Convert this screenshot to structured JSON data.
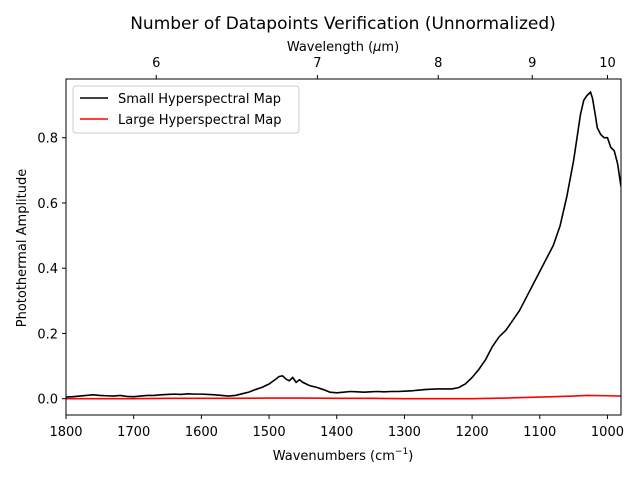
{
  "chart_data": {
    "type": "line",
    "title": "Number of Datapoints Verification (Unnormalized)",
    "xlabel": "Wavenumbers (cm",
    "xlabel_sup": "−1",
    "xlabel_close": ")",
    "ylabel": "Photothermal Amplitude",
    "top_xlabel": "Wavelength (",
    "top_xlabel_mu": "μ",
    "top_xlabel_unit": "m)",
    "xlim": [
      1800,
      980
    ],
    "ylim": [
      -0.05,
      0.98
    ],
    "x_ticks": [
      1800,
      1700,
      1600,
      1500,
      1400,
      1300,
      1200,
      1100,
      1000
    ],
    "y_ticks": [
      0.0,
      0.2,
      0.4,
      0.6,
      0.8
    ],
    "y_tick_labels": [
      "0.0",
      "0.2",
      "0.4",
      "0.6",
      "0.8"
    ],
    "top_ticks": [
      6,
      7,
      8,
      9,
      10
    ],
    "legend_position": "top-left",
    "grid": false,
    "series": [
      {
        "name": "Small Hyperspectral Map",
        "color": "#000000",
        "x": [
          1800,
          1790,
          1780,
          1770,
          1760,
          1750,
          1740,
          1730,
          1720,
          1710,
          1700,
          1690,
          1680,
          1670,
          1660,
          1650,
          1640,
          1630,
          1620,
          1610,
          1600,
          1590,
          1580,
          1570,
          1560,
          1550,
          1540,
          1530,
          1520,
          1510,
          1500,
          1490,
          1485,
          1480,
          1475,
          1470,
          1465,
          1460,
          1455,
          1450,
          1445,
          1440,
          1430,
          1420,
          1410,
          1400,
          1390,
          1380,
          1370,
          1360,
          1350,
          1340,
          1330,
          1320,
          1310,
          1300,
          1290,
          1280,
          1270,
          1260,
          1250,
          1240,
          1230,
          1220,
          1210,
          1200,
          1190,
          1180,
          1170,
          1160,
          1150,
          1140,
          1130,
          1120,
          1110,
          1100,
          1090,
          1080,
          1070,
          1060,
          1050,
          1045,
          1040,
          1035,
          1030,
          1025,
          1022,
          1018,
          1015,
          1010,
          1005,
          1000,
          995,
          990,
          985,
          980
        ],
        "y": [
          0.005,
          0.006,
          0.008,
          0.01,
          0.012,
          0.01,
          0.009,
          0.008,
          0.01,
          0.007,
          0.006,
          0.008,
          0.01,
          0.01,
          0.012,
          0.013,
          0.014,
          0.013,
          0.015,
          0.014,
          0.014,
          0.013,
          0.012,
          0.01,
          0.008,
          0.01,
          0.015,
          0.02,
          0.028,
          0.035,
          0.045,
          0.06,
          0.068,
          0.07,
          0.06,
          0.055,
          0.065,
          0.05,
          0.058,
          0.05,
          0.045,
          0.04,
          0.035,
          0.028,
          0.02,
          0.018,
          0.02,
          0.022,
          0.021,
          0.02,
          0.021,
          0.022,
          0.021,
          0.022,
          0.022,
          0.023,
          0.024,
          0.026,
          0.028,
          0.029,
          0.03,
          0.03,
          0.03,
          0.034,
          0.045,
          0.065,
          0.09,
          0.12,
          0.16,
          0.19,
          0.21,
          0.24,
          0.27,
          0.31,
          0.35,
          0.39,
          0.43,
          0.47,
          0.53,
          0.62,
          0.73,
          0.8,
          0.87,
          0.915,
          0.93,
          0.94,
          0.92,
          0.87,
          0.83,
          0.81,
          0.8,
          0.8,
          0.77,
          0.76,
          0.72,
          0.65
        ]
      },
      {
        "name": "Large Hyperspectral Map",
        "color": "#ff0000",
        "x": [
          1800,
          1750,
          1700,
          1650,
          1600,
          1550,
          1500,
          1450,
          1400,
          1350,
          1300,
          1250,
          1200,
          1150,
          1100,
          1050,
          1030,
          1000,
          980
        ],
        "y": [
          0.0,
          0.0,
          0.0,
          0.001,
          0.001,
          0.001,
          0.002,
          0.002,
          0.001,
          0.001,
          0.0,
          0.0,
          0.0,
          0.002,
          0.005,
          0.008,
          0.01,
          0.009,
          0.008
        ]
      }
    ]
  }
}
